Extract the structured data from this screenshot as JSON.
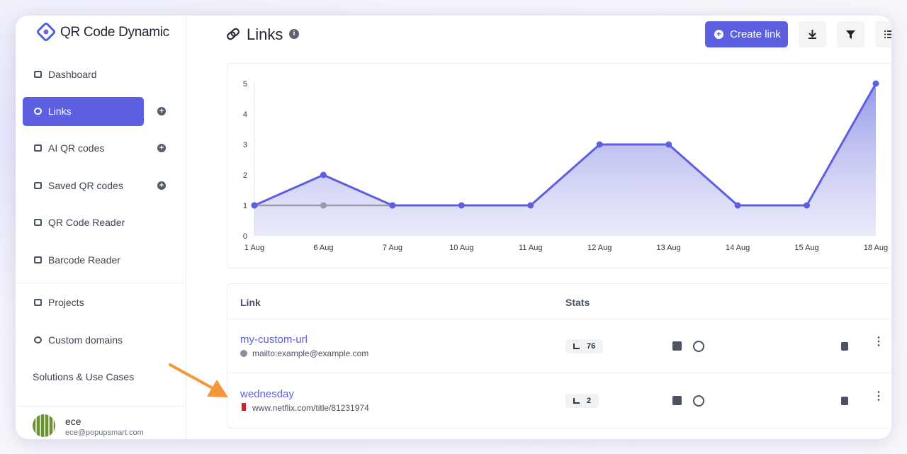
{
  "sidebar": {
    "brand": "QR Code Dynamic",
    "nav": [
      "Dashboard",
      "Links",
      "AI QR codes",
      "Saved QR codes",
      "QR Code Reader",
      "Barcode Reader",
      "Projects",
      "Custom domains",
      "Solutions & Use Cases"
    ],
    "user": {
      "name": "ece",
      "email": "ece@popupsmart.com"
    }
  },
  "header": {
    "title": "Links",
    "action": "Create link"
  },
  "chart_data": {
    "type": "line",
    "categories": [
      "1 Aug",
      "6 Aug",
      "7 Aug",
      "10 Aug",
      "11 Aug",
      "12 Aug",
      "13 Aug",
      "14 Aug",
      "15 Aug",
      "18 Aug"
    ],
    "series": [
      {
        "color": "#5b5fe0",
        "fill": true,
        "values": [
          1,
          2,
          1,
          1,
          1,
          3,
          3,
          1,
          1,
          5
        ]
      },
      {
        "color": "#9a9aa6",
        "fill": false,
        "values": [
          1,
          1,
          1,
          null,
          null,
          null,
          null,
          null,
          null,
          null
        ]
      }
    ],
    "ylim": [
      0,
      5
    ],
    "yticks": [
      0,
      1,
      2,
      3,
      4,
      5
    ]
  },
  "table": {
    "columns": [
      "Link",
      "Stats"
    ],
    "rows": [
      {
        "title": "my-custom-url",
        "url": "mailto:example@example.com",
        "stats": 76
      },
      {
        "title": "wednesday",
        "url": "www.netflix.com/title/81231974",
        "stats": 2
      }
    ]
  }
}
